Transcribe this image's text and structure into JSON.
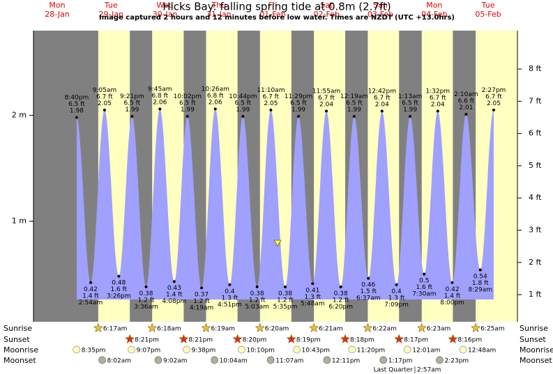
{
  "chart_data": {
    "type": "tide",
    "title": "Hicks Bay: falling  spring tide at 0.8m (2.7ft)",
    "subtitle": "Image captured 2 hours and 12 minutes before low water. Times are NZDT (UTC +13.0hrs)",
    "ylim": [
      0.05,
      2.8
    ],
    "yticks": [
      {
        "value": 1,
        "label": "1 m"
      },
      {
        "value": 2,
        "label": "2 m"
      }
    ],
    "y2lim": [
      0.16,
      9.19
    ],
    "y2ticks": [
      {
        "value": 1,
        "label": "1 ft"
      },
      {
        "value": 2,
        "label": "2 ft"
      },
      {
        "value": 3,
        "label": "3 ft"
      },
      {
        "value": 4,
        "label": "4 ft"
      },
      {
        "value": 5,
        "label": "5 ft"
      },
      {
        "value": 6,
        "label": "6 ft"
      },
      {
        "value": 7,
        "label": "7 ft"
      },
      {
        "value": 8,
        "label": "8 ft"
      }
    ],
    "color": "#a0a0ff",
    "row_labels": {
      "sunrise": "Sunrise",
      "sunset": "Sunset",
      "moonrise": "Moonrise",
      "moonset": "Moonset"
    },
    "days": [
      {
        "weekday": "Mon",
        "date": "28-Jan",
        "tides": [
          {
            "time": "8:40pm",
            "ft": "6.5 ft",
            "m": 1.98
          }
        ],
        "moonrise": "8:35pm"
      },
      {
        "weekday": "Tue",
        "date": "29-Jan",
        "tides": [
          {
            "time": "2:54am",
            "ft": "1.4 ft",
            "m": 0.42
          },
          {
            "time": "9:05am",
            "ft": "6.7 ft",
            "m": 2.05
          },
          {
            "time": "3:26pm",
            "ft": "1.6 ft",
            "m": 0.48
          },
          {
            "time": "9:21pm",
            "ft": "6.5 ft",
            "m": 1.99
          }
        ],
        "sunrise": "6:17am",
        "sunset": "8:21pm",
        "moonrise": "9:07pm",
        "moonset": "8:02am"
      },
      {
        "weekday": "Wed",
        "date": "30-Jan",
        "tides": [
          {
            "time": "3:36am",
            "ft": "1.2 ft",
            "m": 0.38
          },
          {
            "time": "9:45am",
            "ft": "6.8 ft",
            "m": 2.06
          },
          {
            "time": "4:08pm",
            "ft": "1.4 ft",
            "m": 0.43
          },
          {
            "time": "10:02pm",
            "ft": "6.5 ft",
            "m": 1.99
          }
        ],
        "sunrise": "6:18am",
        "sunset": "8:21pm",
        "moonrise": "9:38pm",
        "moonset": "9:02am"
      },
      {
        "weekday": "Thu",
        "date": "31-Jan",
        "tides": [
          {
            "time": "4:19am",
            "ft": "1.2 ft",
            "m": 0.37
          },
          {
            "time": "10:26am",
            "ft": "6.8 ft",
            "m": 2.06
          },
          {
            "time": "4:51pm",
            "ft": "1.3 ft",
            "m": 0.4
          },
          {
            "time": "10:44pm",
            "ft": "6.5 ft",
            "m": 1.99
          }
        ],
        "sunrise": "6:19am",
        "sunset": "8:20pm",
        "moonrise": "10:10pm",
        "moonset": "10:04am"
      },
      {
        "weekday": "Fri",
        "date": "01-Feb",
        "tides": [
          {
            "time": "5:03am",
            "ft": "1.2 ft",
            "m": 0.38
          },
          {
            "time": "11:10am",
            "ft": "6.7 ft",
            "m": 2.05
          },
          {
            "time": "5:35pm",
            "ft": "1.2 ft",
            "m": 0.38
          },
          {
            "time": "11:29pm",
            "ft": "6.5 ft",
            "m": 1.99
          }
        ],
        "sunrise": "6:20am",
        "sunset": "8:19pm",
        "moonrise": "10:43pm",
        "moonset": "11:07am"
      },
      {
        "weekday": "Sat",
        "date": "02-Feb",
        "tides": [
          {
            "time": "5:48am",
            "ft": "1.3 ft",
            "m": 0.41
          },
          {
            "time": "11:55am",
            "ft": "6.7 ft",
            "m": 2.04
          },
          {
            "time": "6:20pm",
            "ft": "1.2 ft",
            "m": 0.38
          }
        ],
        "sunrise": "6:21am",
        "sunset": "8:18pm",
        "moonrise": "11:20pm",
        "moonset": "12:11pm"
      },
      {
        "weekday": "Sun",
        "date": "03-Feb",
        "tides": [
          {
            "time": "12:19am",
            "ft": "6.5 ft",
            "m": 1.99
          },
          {
            "time": "6:37am",
            "ft": "1.5 ft",
            "m": 0.46
          },
          {
            "time": "12:42pm",
            "ft": "6.7 ft",
            "m": 2.04
          },
          {
            "time": "7:09pm",
            "ft": "1.3 ft",
            "m": 0.4
          }
        ],
        "sunrise": "6:22am",
        "sunset": "8:17pm",
        "moonset": "1:17pm",
        "moon_phase": "Last Quarter",
        "moon_phase_time": "2:57am"
      },
      {
        "weekday": "Mon",
        "date": "04-Feb",
        "tides": [
          {
            "time": "1:13am",
            "ft": "6.5 ft",
            "m": 1.99
          },
          {
            "time": "7:30am",
            "ft": "1.6 ft",
            "m": 0.5
          },
          {
            "time": "1:32pm",
            "ft": "6.7 ft",
            "m": 2.04
          },
          {
            "time": "8:00pm",
            "ft": "1.4 ft",
            "m": 0.42
          }
        ],
        "sunrise": "6:23am",
        "sunset": "8:16pm",
        "moonrise": "12:01am",
        "moonset": "2:23pm"
      },
      {
        "weekday": "Tue",
        "date": "05-Feb",
        "tides": [
          {
            "time": "2:10am",
            "ft": "6.6 ft",
            "m": 2.01
          },
          {
            "time": "8:29am",
            "ft": "1.8 ft",
            "m": 0.54
          },
          {
            "time": "2:27pm",
            "ft": "6.7 ft",
            "m": 2.05
          }
        ],
        "sunrise": "6:25am",
        "moonrise": "12:48am"
      }
    ]
  }
}
